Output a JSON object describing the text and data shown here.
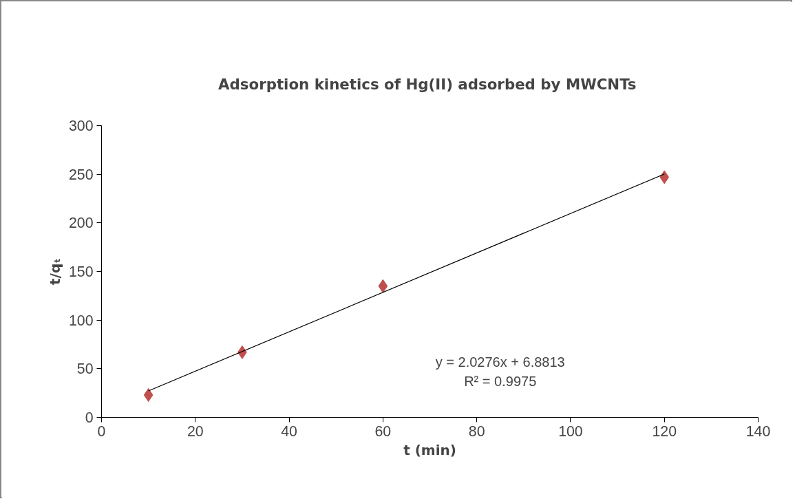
{
  "chart_data": {
    "type": "scatter",
    "title": "Adsorption kinetics of Hg(II) adsorbed  by MWCNTs",
    "xlabel": "t (min)",
    "ylabel": "t/qₜ",
    "x": [
      10,
      30,
      60,
      120
    ],
    "series": [
      {
        "type": "scatter",
        "color": "#c0504d",
        "marker": "diamond",
        "values": [
          23,
          67,
          135,
          247
        ]
      },
      {
        "type": "line",
        "color": "#000000",
        "marker": "none",
        "line_style": "solid",
        "x": [
          10,
          120
        ],
        "values": [
          27.2,
          250.2
        ]
      }
    ],
    "annotations": [
      "y = 2.0276x + 6.8813",
      "R² = 0.9975"
    ],
    "xlim": [
      0,
      140
    ],
    "xticks": [
      0,
      20,
      40,
      60,
      80,
      100,
      120,
      140
    ],
    "ylim": [
      0,
      300
    ],
    "yticks": [
      0,
      50,
      100,
      150,
      200,
      250,
      300
    ],
    "grid": false
  }
}
